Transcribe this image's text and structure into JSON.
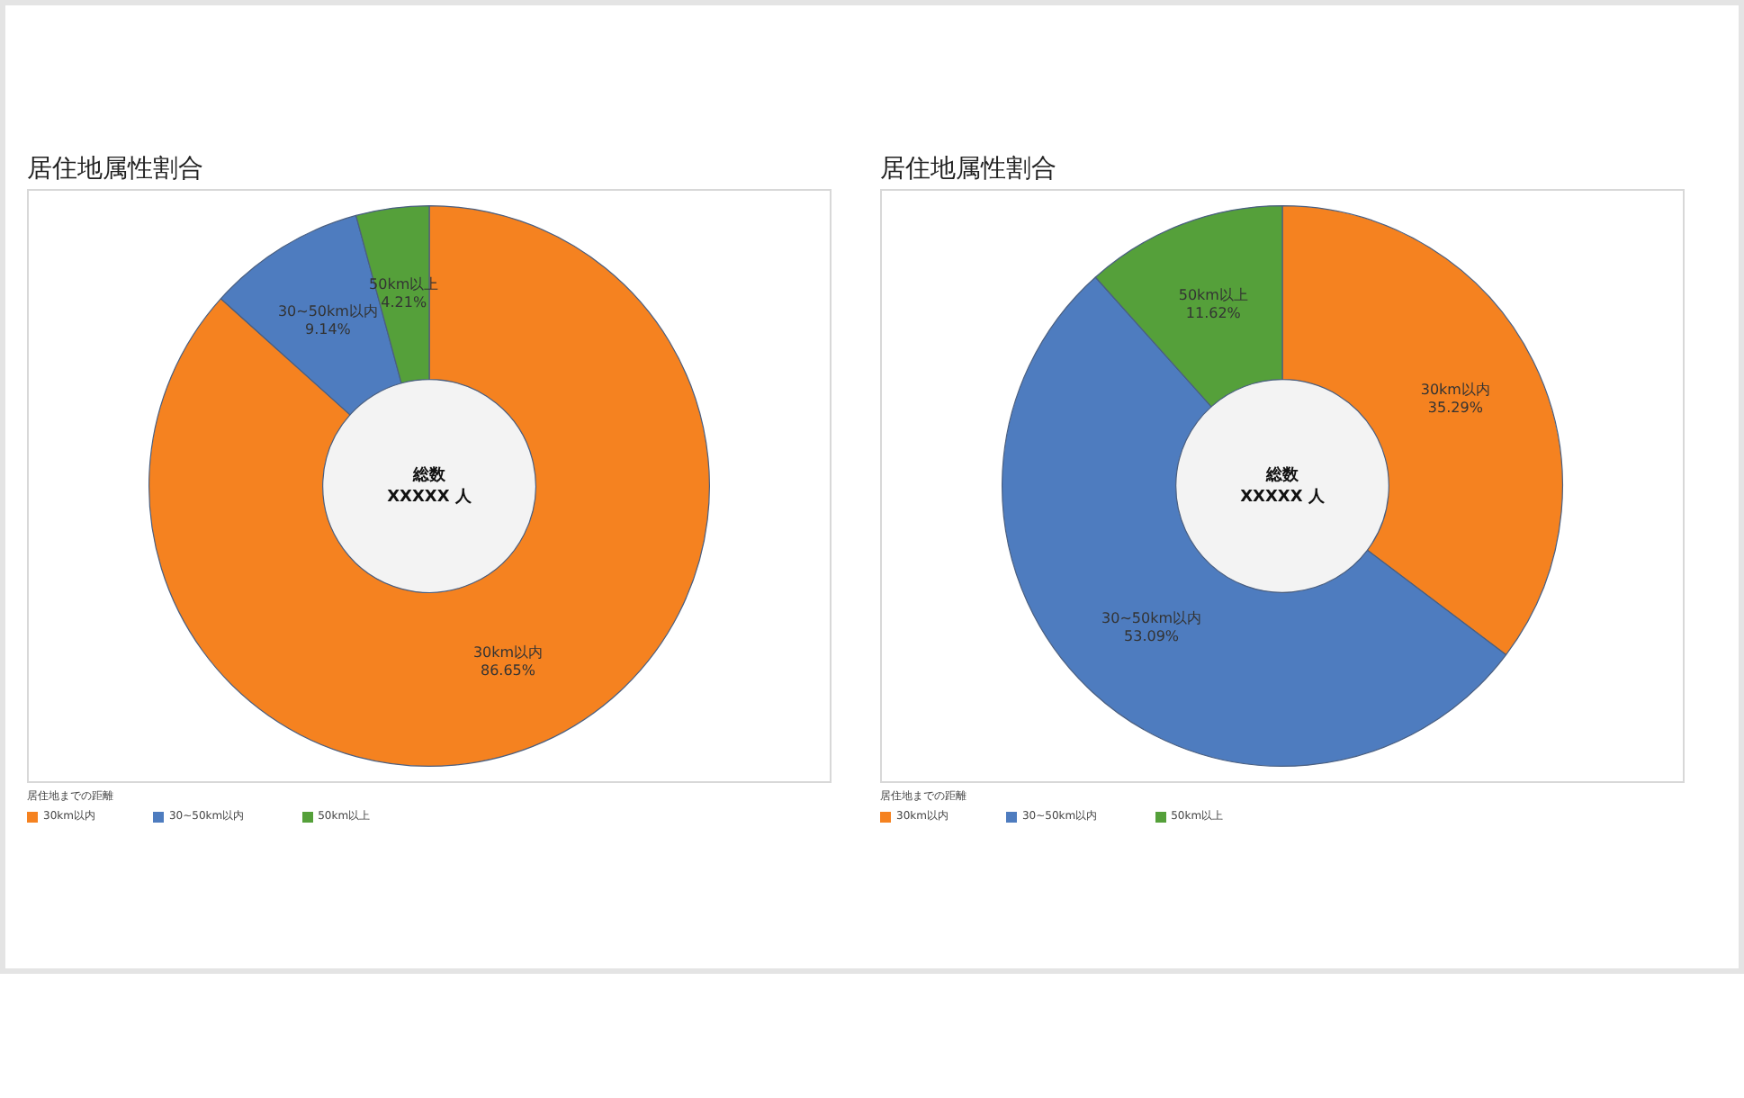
{
  "chart_data": [
    {
      "type": "donut",
      "title": "居住地属性割合",
      "categories": [
        "30km以内",
        "30~50km以内",
        "50km以上"
      ],
      "values": [
        86.65,
        9.14,
        4.21
      ],
      "value_labels": [
        "86.65%",
        "9.14%",
        "4.21%"
      ],
      "colors": [
        "#f58220",
        "#4e7cbf",
        "#55a03a"
      ],
      "legend": "bottom left",
      "legend_title": "居住地までの距離",
      "annotations": [
        "総数\nXXXXX 人"
      ]
    },
    {
      "type": "donut",
      "title": "居住地属性割合",
      "categories": [
        "30km以内",
        "30~50km以内",
        "50km以上"
      ],
      "values": [
        35.29,
        53.09,
        11.62
      ],
      "value_labels": [
        "35.29%",
        "53.09%",
        "11.62%"
      ],
      "colors": [
        "#f58220",
        "#4e7cbf",
        "#55a03a"
      ],
      "legend": "bottom left",
      "legend_title": "居住地までの距離",
      "annotations": [
        "総数\nXXXXX 人"
      ]
    }
  ]
}
